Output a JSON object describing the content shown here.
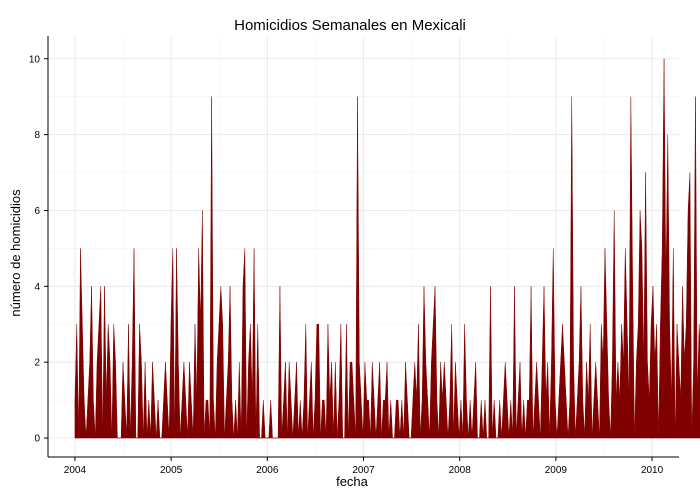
{
  "chart_data": {
    "type": "area",
    "title": "Homicidios Semanales en Mexicali",
    "xlabel": "fecha",
    "ylabel": "número de homicidios",
    "xlim": [
      2003.72,
      2010.28
    ],
    "ylim": [
      -0.5,
      10.6
    ],
    "x_ticks": [
      2004,
      2005,
      2006,
      2007,
      2008,
      2009,
      2010
    ],
    "x_tick_labels": [
      "2004",
      "2005",
      "2006",
      "2007",
      "2008",
      "2009",
      "2010"
    ],
    "y_ticks": [
      0,
      2,
      4,
      6,
      8,
      10
    ],
    "y_tick_labels": [
      "0",
      "2",
      "4",
      "6",
      "8",
      "10"
    ],
    "grid": true,
    "fill_color": "#800000",
    "series": [
      {
        "x_start": 2004.0,
        "x_step": 0.0192,
        "values": [
          1,
          3,
          0,
          5,
          3,
          1,
          0,
          1,
          2,
          4,
          1,
          0,
          2,
          3,
          4,
          0,
          4,
          1,
          3,
          2,
          0,
          3,
          2,
          0,
          0,
          0,
          2,
          1,
          0,
          3,
          0,
          2,
          5,
          0,
          0,
          3,
          2,
          0,
          2,
          0,
          1,
          0,
          2,
          1,
          0,
          1,
          0,
          0,
          1,
          2,
          1,
          0,
          3,
          5,
          0,
          5,
          2,
          0,
          1,
          2,
          1,
          0,
          2,
          1,
          0,
          3,
          1,
          5,
          3,
          6,
          0,
          1,
          1,
          0,
          9,
          1,
          0,
          2,
          3,
          4,
          3,
          0,
          1,
          2,
          4,
          1,
          0,
          1,
          0,
          2,
          0,
          4,
          5,
          0,
          2,
          3,
          1,
          5,
          0,
          3,
          0,
          0,
          1,
          0,
          0,
          0,
          1,
          0,
          0,
          0,
          0,
          4,
          0,
          1,
          2,
          0,
          2,
          1,
          0,
          1,
          2,
          0,
          1,
          0,
          1,
          3,
          0,
          1,
          2,
          0,
          1,
          3,
          3,
          0,
          1,
          1,
          0,
          3,
          1,
          2,
          0,
          2,
          0,
          1,
          3,
          0,
          0,
          3,
          0,
          2,
          2,
          1,
          0,
          9,
          2,
          1,
          0,
          2,
          1,
          1,
          0,
          2,
          1,
          0,
          1,
          2,
          0,
          1,
          1,
          2,
          0,
          1,
          0,
          0,
          1,
          1,
          0,
          1,
          0,
          2,
          1,
          0,
          0,
          1,
          2,
          1,
          3,
          0,
          1,
          4,
          2,
          1,
          0,
          2,
          3,
          4,
          1,
          0,
          2,
          1,
          2,
          1,
          0,
          1,
          3,
          0,
          2,
          1,
          0,
          1,
          0,
          3,
          1,
          0,
          1,
          0,
          1,
          2,
          0,
          0,
          1,
          0,
          1,
          0,
          0,
          4,
          0,
          1,
          0,
          0,
          1,
          0,
          1,
          2,
          1,
          0,
          1,
          0,
          4,
          0,
          1,
          2,
          0,
          1,
          0,
          1,
          1,
          4,
          0,
          1,
          2,
          1,
          0,
          2,
          4,
          1,
          2,
          0,
          2,
          5,
          1,
          0,
          1,
          2,
          3,
          2,
          1,
          0,
          1,
          9,
          2,
          0,
          1,
          2,
          4,
          1,
          0,
          2,
          1,
          3,
          0,
          1,
          2,
          1,
          0,
          3,
          2,
          5,
          3,
          1,
          0,
          2,
          6,
          1,
          2,
          1,
          3,
          2,
          5,
          3,
          1,
          9,
          4,
          0,
          2,
          3,
          6,
          5,
          2,
          7,
          2,
          1,
          3,
          4,
          2,
          3,
          0,
          3,
          5,
          10,
          4,
          8,
          3,
          1,
          5,
          0,
          3,
          2,
          1,
          4,
          2,
          3,
          6,
          7,
          0,
          2,
          9,
          1,
          3,
          2,
          1,
          6,
          0,
          0
        ]
      }
    ]
  }
}
